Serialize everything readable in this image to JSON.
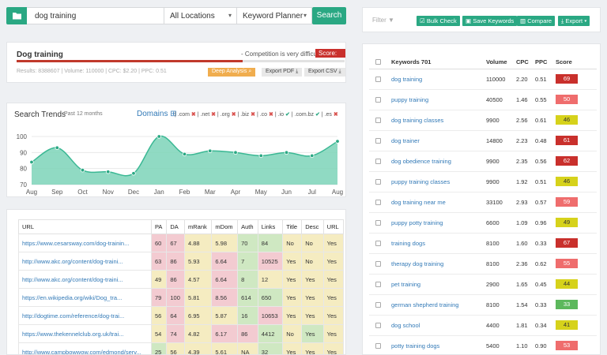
{
  "search": {
    "query": "dog training",
    "location": "All Locations",
    "tool": "Keyword Planner",
    "button": "Search"
  },
  "summary": {
    "keyword": "Dog training",
    "competition": "- Competition is very difficult",
    "score_label": "Score: 69",
    "difficulty_fraction": 0.69,
    "meta": "Results: 8388607 | Volume: 110000 | CPC: $2.20 | PPC: 0.51",
    "btn_deep": "Deep Analysis",
    "btn_pdf": "Export PDF",
    "btn_csv": "Export CSV"
  },
  "trends": {
    "title": "Search Trends",
    "subtitle": "Past 12 months",
    "domains_label": "Domains",
    "tlds": [
      {
        "name": ".com",
        "status": "x"
      },
      {
        "name": ".net",
        "status": "x"
      },
      {
        "name": ".org",
        "status": "x"
      },
      {
        "name": ".biz",
        "status": "x"
      },
      {
        "name": ".co",
        "status": "x"
      },
      {
        "name": ".io",
        "status": "ok"
      },
      {
        "name": ".com.bz",
        "status": "ok"
      },
      {
        "name": ".es",
        "status": "x"
      }
    ]
  },
  "chart_data": {
    "type": "area",
    "categories": [
      "Aug",
      "Sep",
      "Oct",
      "Nov",
      "Dec",
      "Jan",
      "Feb",
      "Mar",
      "Apr",
      "May",
      "Jun",
      "Jul",
      "Aug"
    ],
    "values": [
      84,
      93,
      79,
      78,
      77,
      100,
      89,
      91,
      90,
      88,
      90,
      88,
      97
    ],
    "ylim": [
      70,
      100
    ],
    "yticks": [
      70,
      80,
      90,
      100
    ],
    "color": "#7dd3b9",
    "grid": true
  },
  "url_table": {
    "headers": [
      "URL",
      "PA",
      "DA",
      "mRank",
      "mDom",
      "Auth",
      "Links",
      "Title",
      "Desc",
      "URL"
    ],
    "rows": [
      [
        "https://www.cesarsway.com/dog-trainin...",
        "60",
        "67",
        "4.88",
        "5.98",
        "70",
        "84",
        "No",
        "No",
        "Yes"
      ],
      [
        "http://www.akc.org/content/dog-traini...",
        "63",
        "86",
        "5.93",
        "6.64",
        "7",
        "10525",
        "Yes",
        "No",
        "Yes"
      ],
      [
        "http://www.akc.org/content/dog-traini...",
        "49",
        "86",
        "4.57",
        "6.64",
        "8",
        "12",
        "Yes",
        "Yes",
        "Yes"
      ],
      [
        "https://en.wikipedia.org/wiki/Dog_tra...",
        "79",
        "100",
        "5.81",
        "8.56",
        "614",
        "650",
        "Yes",
        "Yes",
        "Yes"
      ],
      [
        "http://dogtime.com/reference/dog-trai...",
        "56",
        "64",
        "6.95",
        "5.87",
        "16",
        "10653",
        "Yes",
        "Yes",
        "Yes"
      ],
      [
        "https://www.thekennelclub.org.uk/trai...",
        "54",
        "74",
        "4.82",
        "6.17",
        "86",
        "4412",
        "No",
        "Yes",
        "Yes"
      ],
      [
        "http://www.campbowwow.com/edmond/serv...",
        "25",
        "56",
        "4.39",
        "5.61",
        "NA",
        "32",
        "Yes",
        "Yes",
        "Yes"
      ]
    ],
    "colors": [
      [
        "url",
        "cp",
        "cp",
        "cy",
        "cy",
        "cg",
        "cg",
        "cy",
        "cy",
        "cy"
      ],
      [
        "url",
        "cp",
        "cp",
        "cy",
        "cp",
        "cg",
        "cp",
        "cy",
        "cy",
        "cy"
      ],
      [
        "url",
        "cy",
        "cp",
        "cy",
        "cp",
        "cg",
        "cy",
        "cy",
        "cy",
        "cy"
      ],
      [
        "url",
        "cp",
        "cp",
        "cy",
        "cp",
        "cg",
        "cg",
        "cy",
        "cy",
        "cy"
      ],
      [
        "url",
        "cy",
        "cp",
        "cy",
        "cy",
        "cg",
        "cp",
        "cy",
        "cy",
        "cy"
      ],
      [
        "url",
        "cy",
        "cp",
        "cy",
        "cp",
        "cp",
        "cg",
        "cy",
        "cg",
        "cy"
      ],
      [
        "url",
        "cg",
        "cy",
        "cy",
        "cy",
        "cy",
        "cg",
        "cy",
        "cy",
        "cy"
      ]
    ]
  },
  "filter": {
    "label": "Filter",
    "bulk": "Bulk Check",
    "save": "Save Keywords",
    "compare": "Compare",
    "export": "Export"
  },
  "keywords": {
    "headers": [
      "Keywords 701",
      "Volume",
      "CPC",
      "PPC",
      "Score"
    ],
    "rows": [
      {
        "kw": "dog training",
        "vol": "110000",
        "cpc": "2.20",
        "ppc": "0.51",
        "score": "69",
        "c": "bR"
      },
      {
        "kw": "puppy training",
        "vol": "40500",
        "cpc": "1.46",
        "ppc": "0.55",
        "score": "50",
        "c": "bS"
      },
      {
        "kw": "dog training classes",
        "vol": "9900",
        "cpc": "2.56",
        "ppc": "0.61",
        "score": "46",
        "c": "bY"
      },
      {
        "kw": "dog trainer",
        "vol": "14800",
        "cpc": "2.23",
        "ppc": "0.48",
        "score": "61",
        "c": "bR"
      },
      {
        "kw": "dog obedience training",
        "vol": "9900",
        "cpc": "2.35",
        "ppc": "0.56",
        "score": "62",
        "c": "bR"
      },
      {
        "kw": "puppy training classes",
        "vol": "9900",
        "cpc": "1.92",
        "ppc": "0.51",
        "score": "46",
        "c": "bY"
      },
      {
        "kw": "dog training near me",
        "vol": "33100",
        "cpc": "2.93",
        "ppc": "0.57",
        "score": "59",
        "c": "bS"
      },
      {
        "kw": "puppy potty training",
        "vol": "6600",
        "cpc": "1.09",
        "ppc": "0.96",
        "score": "49",
        "c": "bY"
      },
      {
        "kw": "training dogs",
        "vol": "8100",
        "cpc": "1.60",
        "ppc": "0.33",
        "score": "67",
        "c": "bR"
      },
      {
        "kw": "therapy dog training",
        "vol": "8100",
        "cpc": "2.36",
        "ppc": "0.62",
        "score": "55",
        "c": "bS"
      },
      {
        "kw": "pet training",
        "vol": "2900",
        "cpc": "1.65",
        "ppc": "0.45",
        "score": "44",
        "c": "bY"
      },
      {
        "kw": "german shepherd training",
        "vol": "8100",
        "cpc": "1.54",
        "ppc": "0.33",
        "score": "33",
        "c": "bG"
      },
      {
        "kw": "dog school",
        "vol": "4400",
        "cpc": "1.81",
        "ppc": "0.34",
        "score": "41",
        "c": "bY"
      },
      {
        "kw": "potty training dogs",
        "vol": "5400",
        "cpc": "1.10",
        "ppc": "0.90",
        "score": "53",
        "c": "bS"
      }
    ]
  }
}
